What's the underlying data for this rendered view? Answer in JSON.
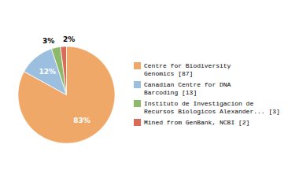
{
  "chart_data": {
    "type": "pie",
    "categories": [
      "Centre for Biodiversity\nGenomics [87]",
      "Canadian Centre for DNA\nBarcoding [13]",
      "Instituto de Investigacion de\nRecursos Biologicos Alexander... [3]",
      "Mined from GenBank, NCBI [2]"
    ],
    "values": [
      83,
      12,
      3,
      2
    ],
    "value_labels": [
      "83%",
      "12%",
      "3%",
      "2%"
    ],
    "colors": [
      "#F0A868",
      "#9DBFDF",
      "#8EB86A",
      "#D96B5A"
    ],
    "data_labels": true,
    "legend": "right"
  }
}
